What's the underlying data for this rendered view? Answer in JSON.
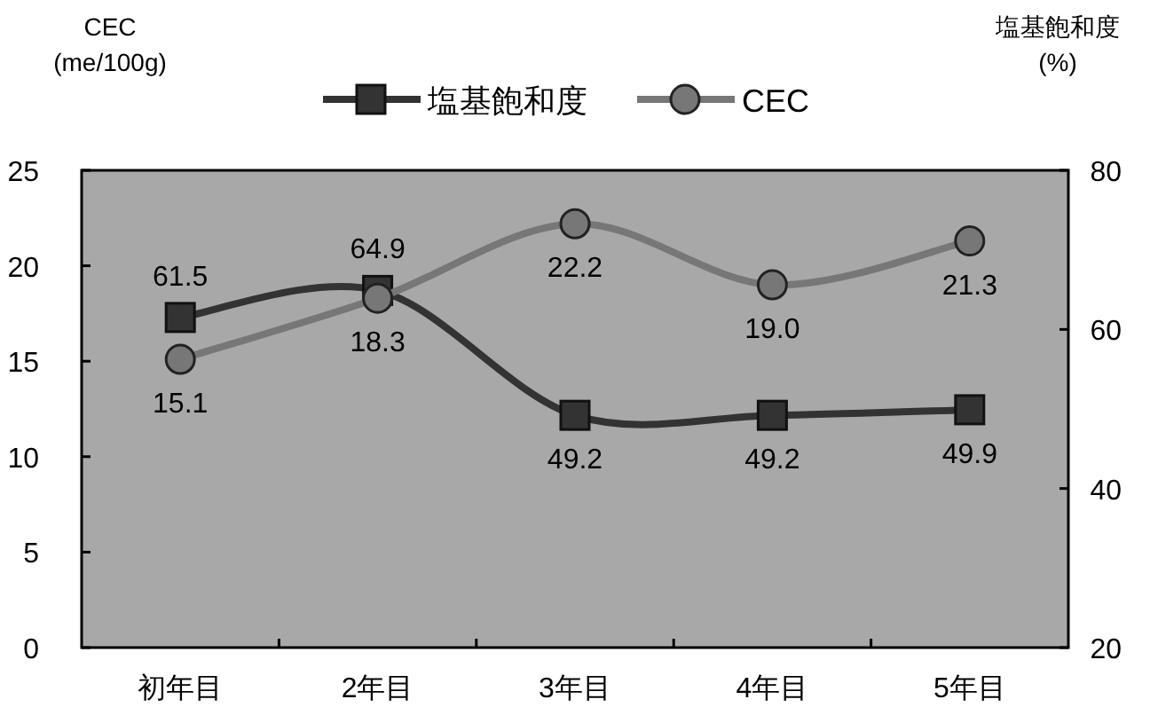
{
  "chart_data": {
    "type": "line",
    "categories": [
      "初年目",
      "2年目",
      "3年目",
      "4年目",
      "5年目"
    ],
    "ylabel": "CEC (me/100g)",
    "y2label": "塩基飽和度 (%)",
    "ylim": [
      0,
      25
    ],
    "yticks": [
      0,
      5,
      10,
      15,
      20,
      25
    ],
    "y2lim": [
      20,
      80
    ],
    "y2ticks": [
      20,
      40,
      60,
      80
    ],
    "series": [
      {
        "name": "塩基飽和度",
        "color": "#333333",
        "axis": "y2",
        "marker": "square",
        "values": [
          61.5,
          64.9,
          49.2,
          49.2,
          49.9
        ],
        "value_labels": [
          "61.5",
          "64.9",
          "49.2",
          "49.2",
          "49.9"
        ]
      },
      {
        "name": "CEC",
        "color": "#777777",
        "axis": "y",
        "marker": "circle",
        "values": [
          15.1,
          18.3,
          22.2,
          19.0,
          21.3
        ],
        "value_labels": [
          "15.1",
          "18.3",
          "22.2",
          "19.0",
          "21.3"
        ]
      }
    ],
    "legend": "top",
    "grid": false
  }
}
